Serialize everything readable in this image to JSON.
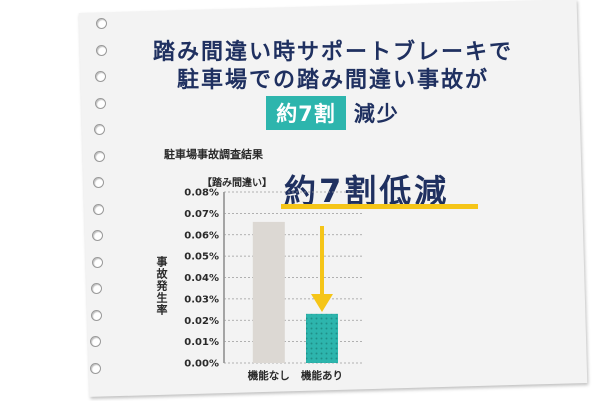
{
  "headline": {
    "line1": "踏み間違い時サポートブレーキで",
    "line2": "駐車場での踏み間違い事故が",
    "badge": "約7割",
    "badge_suffix": "減少"
  },
  "callout": "約7割低減",
  "colors": {
    "navy": "#1f3060",
    "teal": "#2db5ad",
    "gray_bar": "#dcd8d3",
    "arrow": "#f5c518",
    "paper": "#f3f3f3"
  },
  "chart_data": {
    "type": "bar",
    "title": "駐車場事故調査結果",
    "unit_label": "【踏み間違い】",
    "ylabel": "事故発生率",
    "categories": [
      "機能なし",
      "機能あり"
    ],
    "values": [
      0.066,
      0.023
    ],
    "ylim": [
      0,
      0.08
    ],
    "yticks": [
      0.0,
      0.01,
      0.02,
      0.03,
      0.04,
      0.05,
      0.06,
      0.07,
      0.08
    ],
    "ytick_labels": [
      "0.00%",
      "0.01%",
      "0.02%",
      "0.03%",
      "0.04%",
      "0.05%",
      "0.06%",
      "0.07%",
      "0.08%"
    ],
    "grid": true
  }
}
